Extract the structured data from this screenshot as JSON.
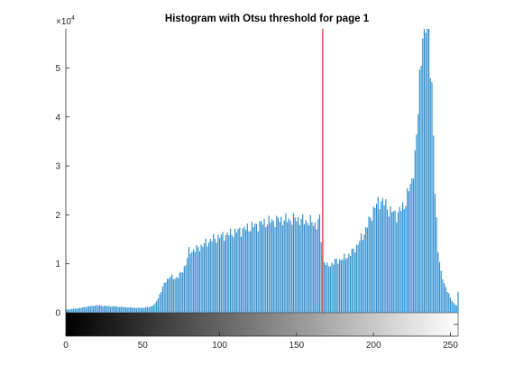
{
  "chart_data": {
    "type": "bar",
    "title": "Histogram with Otsu threshold for page 1",
    "xlabel": "",
    "ylabel": "",
    "y_exponent_label": "×10",
    "y_exponent_power": "4",
    "xlim": [
      0,
      255
    ],
    "ylim": [
      0,
      58000
    ],
    "x_ticks": [
      0,
      50,
      100,
      150,
      200,
      250
    ],
    "x_tick_labels": [
      "0",
      "50",
      "100",
      "150",
      "200",
      "250"
    ],
    "y_ticks": [
      0,
      10000,
      20000,
      30000,
      40000,
      50000
    ],
    "y_tick_labels": [
      "0",
      "1",
      "2",
      "3",
      "4",
      "5"
    ],
    "threshold": 167,
    "grid": false,
    "legend": "none",
    "colors": {
      "bars": "#2f8fd0",
      "threshold": "#e3272b",
      "axes": "#262626"
    },
    "histogram_profile": {
      "x": [
        0,
        5,
        10,
        15,
        20,
        25,
        30,
        35,
        40,
        45,
        50,
        55,
        58,
        60,
        62,
        65,
        68,
        70,
        72,
        75,
        78,
        80,
        85,
        90,
        95,
        100,
        105,
        110,
        115,
        120,
        125,
        130,
        135,
        140,
        145,
        150,
        155,
        160,
        163,
        165,
        167,
        168,
        170,
        172,
        175,
        180,
        185,
        190,
        195,
        200,
        203,
        205,
        208,
        210,
        215,
        220,
        225,
        228,
        230,
        232,
        234,
        236,
        238,
        240,
        242,
        244,
        246,
        248,
        250,
        252,
        254,
        255
      ],
      "y": [
        600,
        800,
        1000,
        1300,
        1500,
        1400,
        1300,
        1200,
        1100,
        1000,
        1000,
        1200,
        1800,
        3000,
        4500,
        6500,
        7500,
        7000,
        7200,
        8000,
        10000,
        12500,
        13000,
        14000,
        15000,
        15500,
        16000,
        16500,
        17000,
        17500,
        18000,
        18500,
        18800,
        19000,
        19000,
        19200,
        18800,
        18500,
        18000,
        19000,
        11500,
        10500,
        9500,
        9800,
        10500,
        11000,
        12000,
        14000,
        17000,
        21000,
        22500,
        23000,
        22000,
        21000,
        20000,
        22000,
        27000,
        35000,
        48000,
        58000,
        58000,
        58000,
        45000,
        25000,
        13000,
        8000,
        6000,
        4500,
        3000,
        2000,
        1500,
        4000
      ]
    }
  }
}
